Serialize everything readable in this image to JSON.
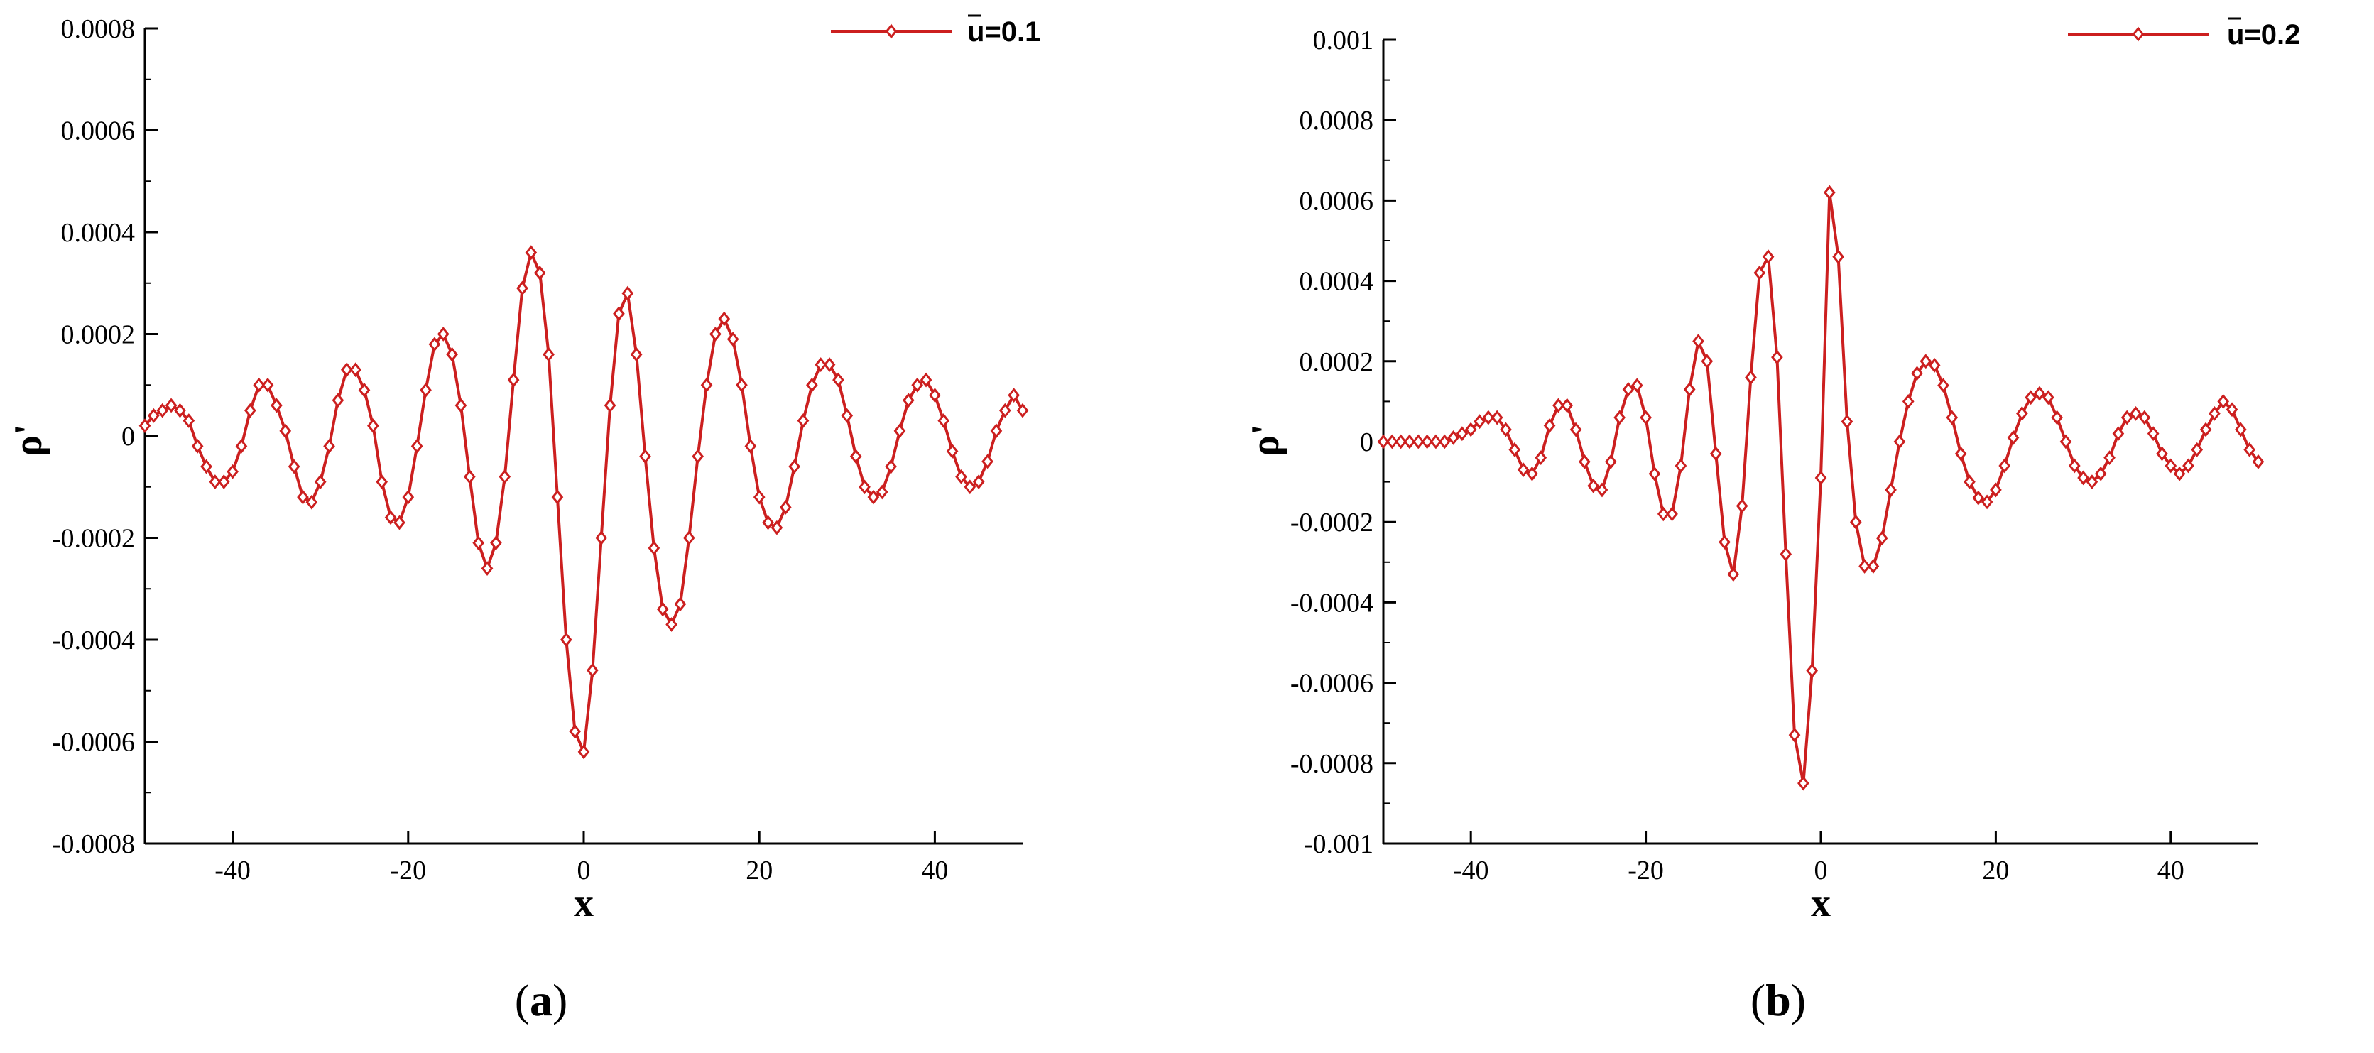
{
  "chart_data": [
    {
      "type": "line",
      "panel": "(a)",
      "xlabel": "x",
      "ylabel": "ρ'",
      "xlim": [
        -50,
        50
      ],
      "ylim": [
        -0.0008,
        0.0008
      ],
      "xticks": [
        -40,
        -20,
        0,
        20,
        40
      ],
      "xtick_labels": [
        "-40",
        "-20",
        "0",
        "20",
        "40"
      ],
      "yticks": [
        -0.0008,
        -0.0006,
        -0.0004,
        -0.0002,
        0,
        0.0002,
        0.0004,
        0.0006,
        0.0008
      ],
      "ytick_labels": [
        "-0.0008",
        "-0.0006",
        "-0.0004",
        "-0.0002",
        "0",
        "0.0002",
        "0.0004",
        "0.0006",
        "0.0008"
      ],
      "legend_position": "top-right",
      "color": "#cc1f1f",
      "marker": "diamond",
      "series": [
        {
          "name": "u=0.1",
          "x": [
            -50,
            -49,
            -48,
            -47,
            -46,
            -45,
            -44,
            -43,
            -42,
            -41,
            -40,
            -39,
            -38,
            -37,
            -36,
            -35,
            -34,
            -33,
            -32,
            -31,
            -30,
            -29,
            -28,
            -27,
            -26,
            -25,
            -24,
            -23,
            -22,
            -21,
            -20,
            -19,
            -18,
            -17,
            -16,
            -15,
            -14,
            -13,
            -12,
            -11,
            -10,
            -9,
            -8,
            -7,
            -6,
            -5,
            -4,
            -3,
            -2,
            -1,
            0,
            1,
            2,
            3,
            4,
            5,
            6,
            7,
            8,
            9,
            10,
            11,
            12,
            13,
            14,
            15,
            16,
            17,
            18,
            19,
            20,
            21,
            22,
            23,
            24,
            25,
            26,
            27,
            28,
            29,
            30,
            31,
            32,
            33,
            34,
            35,
            36,
            37,
            38,
            39,
            40,
            41,
            42,
            43,
            44,
            45,
            46,
            47,
            48,
            49,
            50
          ],
          "y": [
            2e-05,
            4e-05,
            5e-05,
            6e-05,
            5e-05,
            3e-05,
            -2e-05,
            -6e-05,
            -9e-05,
            -9e-05,
            -7e-05,
            -2e-05,
            5e-05,
            0.0001,
            0.0001,
            6e-05,
            1e-05,
            -6e-05,
            -0.00012,
            -0.00013,
            -9e-05,
            -2e-05,
            7e-05,
            0.00013,
            0.00013,
            9e-05,
            2e-05,
            -9e-05,
            -0.00016,
            -0.00017,
            -0.00012,
            -2e-05,
            9e-05,
            0.00018,
            0.0002,
            0.00016,
            6e-05,
            -8e-05,
            -0.00021,
            -0.00026,
            -0.00021,
            -8e-05,
            0.00011,
            0.00029,
            0.00036,
            0.00032,
            0.00016,
            -0.00012,
            -0.0004,
            -0.00058,
            -0.00062,
            -0.00046,
            -0.0002,
            6e-05,
            0.00024,
            0.00028,
            0.00016,
            -4e-05,
            -0.00022,
            -0.00034,
            -0.00037,
            -0.00033,
            -0.0002,
            -4e-05,
            0.0001,
            0.0002,
            0.00023,
            0.00019,
            0.0001,
            -2e-05,
            -0.00012,
            -0.00017,
            -0.00018,
            -0.00014,
            -6e-05,
            3e-05,
            0.0001,
            0.00014,
            0.00014,
            0.00011,
            4e-05,
            -4e-05,
            -0.0001,
            -0.00012,
            -0.00011,
            -6e-05,
            1e-05,
            7e-05,
            0.0001,
            0.00011,
            8e-05,
            3e-05,
            -3e-05,
            -8e-05,
            -0.0001,
            -9e-05,
            -5e-05,
            1e-05,
            5e-05,
            8e-05,
            5e-05
          ]
        }
      ]
    },
    {
      "type": "line",
      "panel": "(b)",
      "xlabel": "x",
      "ylabel": "ρ'",
      "xlim": [
        -50,
        50
      ],
      "ylim": [
        -0.001,
        0.001
      ],
      "xticks": [
        -40,
        -20,
        0,
        20,
        40
      ],
      "xtick_labels": [
        "-40",
        "-20",
        "0",
        "20",
        "40"
      ],
      "yticks": [
        -0.001,
        -0.0008,
        -0.0006,
        -0.0004,
        -0.0002,
        0,
        0.0002,
        0.0004,
        0.0006,
        0.0008,
        0.001
      ],
      "ytick_labels": [
        "-0.001",
        "-0.0008",
        "-0.0006",
        "-0.0004",
        "-0.0002",
        "0",
        "0.0002",
        "0.0004",
        "0.0006",
        "0.0008",
        "0.001"
      ],
      "legend_position": "top-right",
      "color": "#cc1f1f",
      "marker": "diamond",
      "series": [
        {
          "name": "u=0.2",
          "x": [
            -50,
            -49,
            -48,
            -47,
            -46,
            -45,
            -44,
            -43,
            -42,
            -41,
            -40,
            -39,
            -38,
            -37,
            -36,
            -35,
            -34,
            -33,
            -32,
            -31,
            -30,
            -29,
            -28,
            -27,
            -26,
            -25,
            -24,
            -23,
            -22,
            -21,
            -20,
            -19,
            -18,
            -17,
            -16,
            -15,
            -14,
            -13,
            -12,
            -11,
            -10,
            -9,
            -8,
            -7,
            -6,
            -5,
            -4,
            -3,
            -2,
            -1,
            0,
            1,
            2,
            3,
            4,
            5,
            6,
            7,
            8,
            9,
            10,
            11,
            12,
            13,
            14,
            15,
            16,
            17,
            18,
            19,
            20,
            21,
            22,
            23,
            24,
            25,
            26,
            27,
            28,
            29,
            30,
            31,
            32,
            33,
            34,
            35,
            36,
            37,
            38,
            39,
            40,
            41,
            42,
            43,
            44,
            45,
            46,
            47,
            48,
            49,
            50
          ],
          "y": [
            0,
            0,
            0,
            0,
            0,
            0,
            0,
            0,
            1e-05,
            2e-05,
            3e-05,
            5e-05,
            6e-05,
            6e-05,
            3e-05,
            -2e-05,
            -7e-05,
            -8e-05,
            -4e-05,
            4e-05,
            9e-05,
            9e-05,
            3e-05,
            -5e-05,
            -0.00011,
            -0.00012,
            -5e-05,
            6e-05,
            0.00013,
            0.00014,
            6e-05,
            -8e-05,
            -0.00018,
            -0.00018,
            -6e-05,
            0.00013,
            0.00025,
            0.0002,
            -3e-05,
            -0.00025,
            -0.00033,
            -0.00016,
            0.00016,
            0.00042,
            0.00046,
            0.00021,
            -0.00028,
            -0.00073,
            -0.00085,
            -0.00057,
            -9e-05,
            0.00062,
            0.00046,
            5e-05,
            -0.0002,
            -0.00031,
            -0.00031,
            -0.00024,
            -0.00012,
            0,
            0.0001,
            0.00017,
            0.0002,
            0.00019,
            0.00014,
            6e-05,
            -3e-05,
            -0.0001,
            -0.00014,
            -0.00015,
            -0.00012,
            -6e-05,
            1e-05,
            7e-05,
            0.00011,
            0.00012,
            0.00011,
            6e-05,
            0,
            -6e-05,
            -9e-05,
            -0.0001,
            -8e-05,
            -4e-05,
            2e-05,
            6e-05,
            7e-05,
            6e-05,
            2e-05,
            -3e-05,
            -6e-05,
            -8e-05,
            -6e-05,
            -2e-05,
            3e-05,
            7e-05,
            0.0001,
            8e-05,
            3e-05,
            -2e-05,
            -5e-05
          ]
        }
      ]
    }
  ]
}
